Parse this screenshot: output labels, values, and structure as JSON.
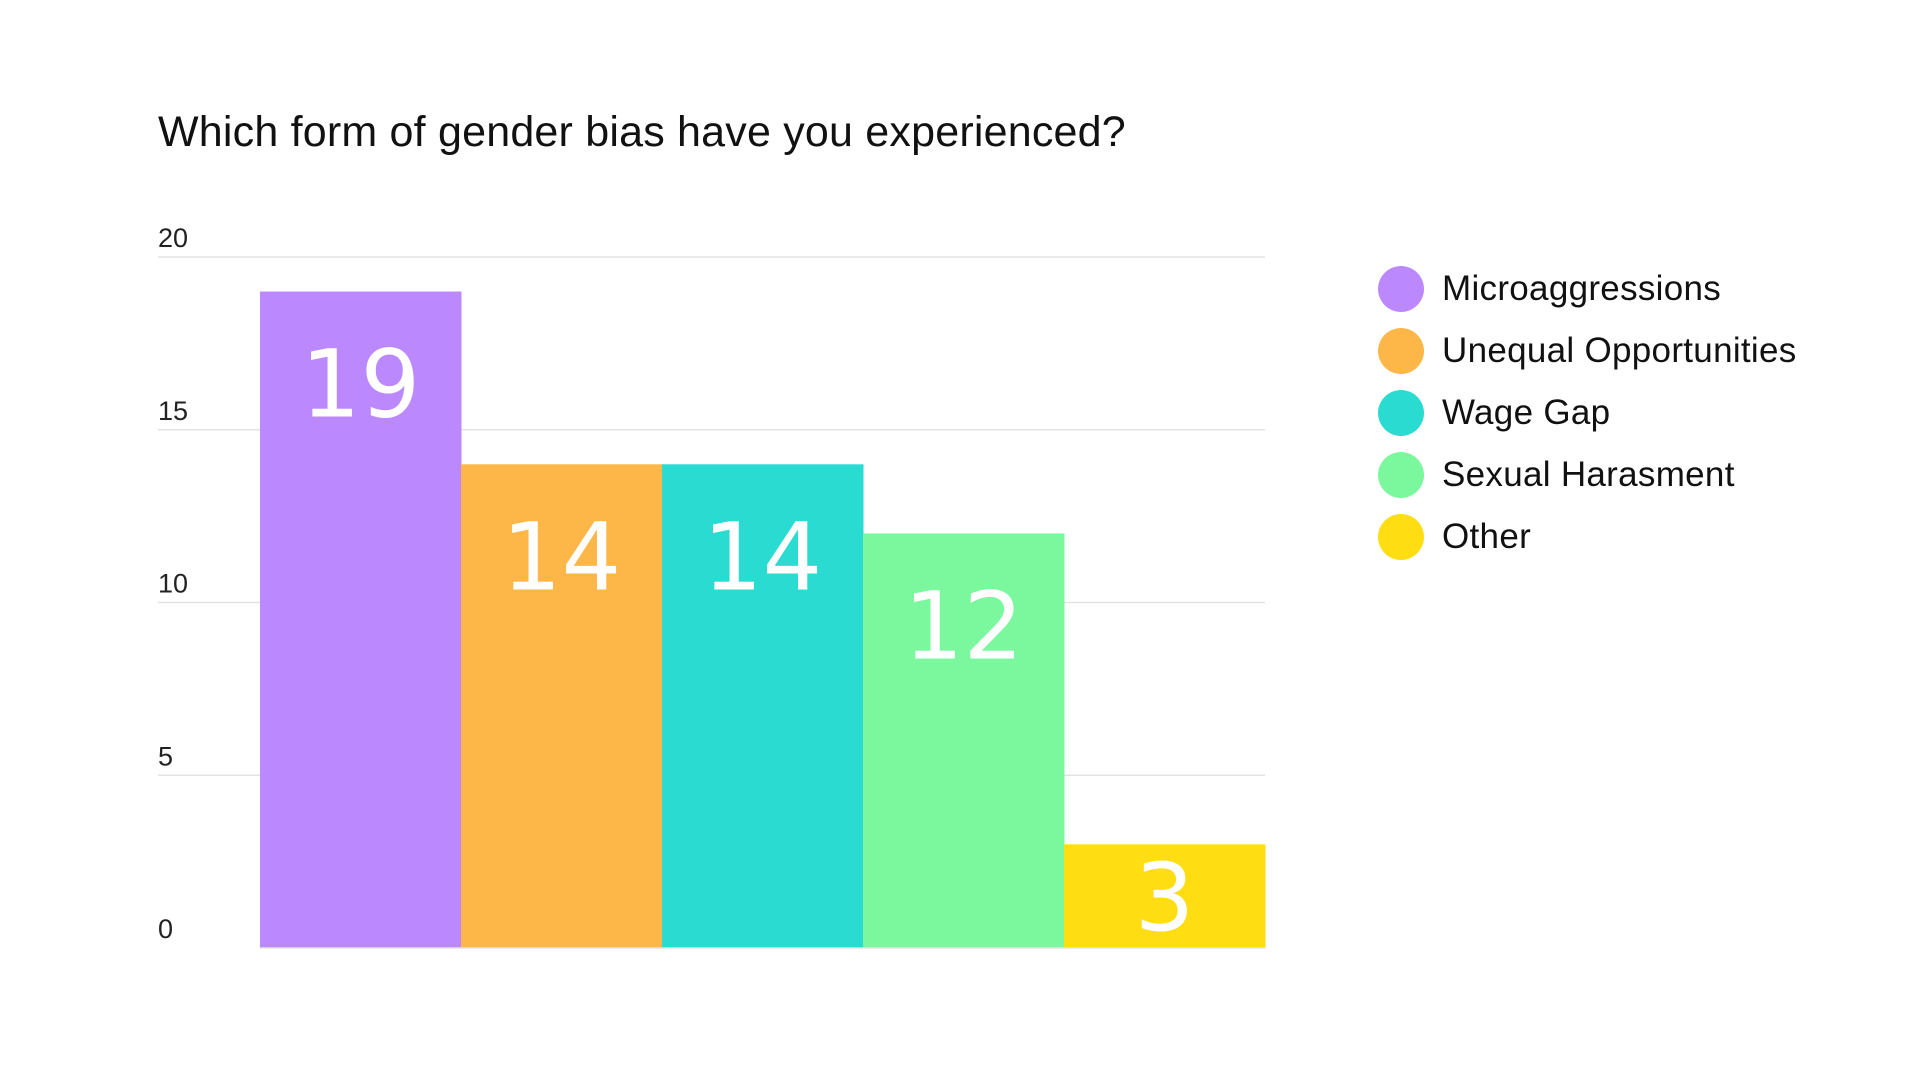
{
  "chart_data": {
    "type": "bar",
    "title": "Which form of gender bias have you experienced?",
    "xlabel": "",
    "ylabel": "",
    "categories": [
      "Microaggressions",
      "Unequal Opportunities",
      "Wage Gap",
      "Sexual Harasment",
      "Other"
    ],
    "values": [
      19,
      14,
      14,
      12,
      3
    ],
    "data_labels": [
      "19",
      "14",
      "14",
      "12",
      "3"
    ],
    "colors": [
      "#BC88FE",
      "#FDB748",
      "#2ADBD1",
      "#7BF89E",
      "#FEDD12"
    ],
    "ylim": [
      0,
      20
    ],
    "yticks": [
      "0",
      "5",
      "10",
      "15",
      "20"
    ],
    "ytick_values": [
      0,
      5,
      10,
      15,
      20
    ],
    "grid": true,
    "legend_placement": "right"
  }
}
